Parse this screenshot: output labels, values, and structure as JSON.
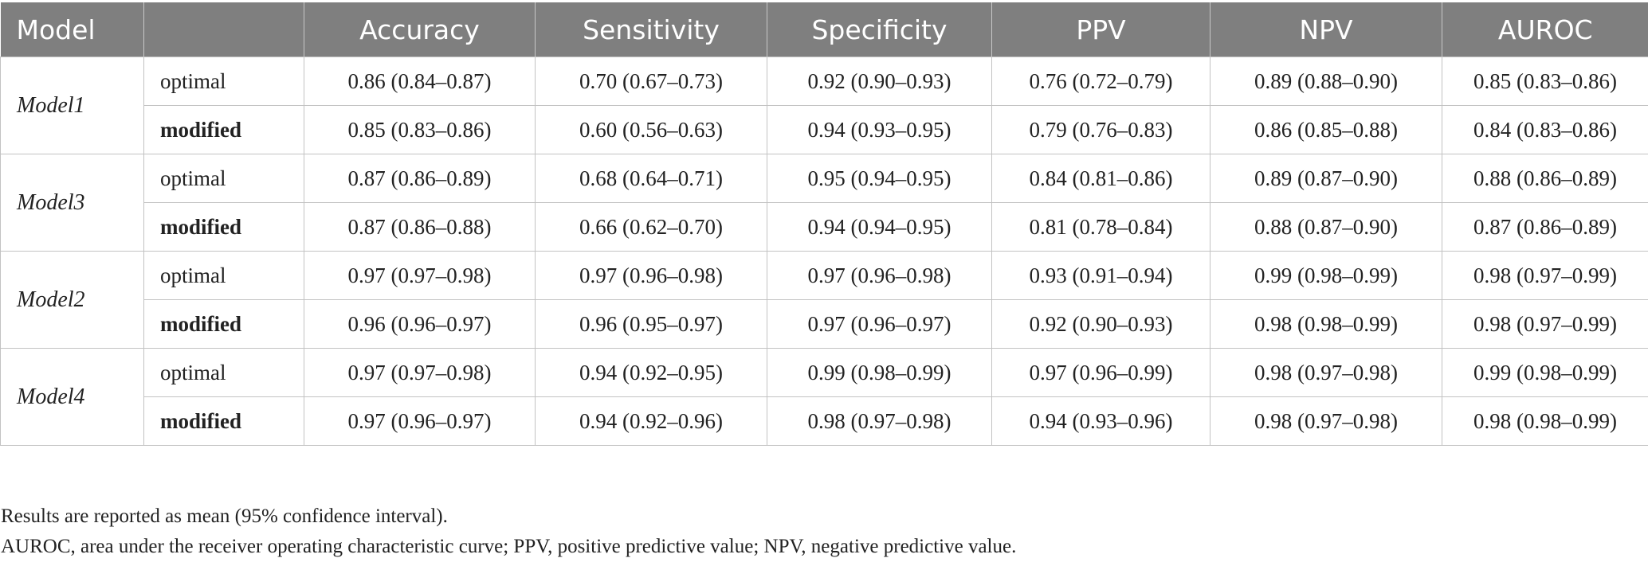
{
  "table": {
    "headers": [
      "Model",
      "",
      "Accuracy",
      "Sensitivity",
      "Specificity",
      "PPV",
      "NPV",
      "AUROC"
    ],
    "groups": [
      {
        "model": "Model1",
        "rows": [
          {
            "variant": "optimal",
            "bold": false,
            "values": [
              "0.86 (0.84–0.87)",
              "0.70 (0.67–0.73)",
              "0.92 (0.90–0.93)",
              "0.76 (0.72–0.79)",
              "0.89 (0.88–0.90)",
              "0.85 (0.83–0.86)"
            ]
          },
          {
            "variant": "modified",
            "bold": true,
            "values": [
              "0.85 (0.83–0.86)",
              "0.60 (0.56–0.63)",
              "0.94 (0.93–0.95)",
              "0.79 (0.76–0.83)",
              "0.86 (0.85–0.88)",
              "0.84 (0.83–0.86)"
            ]
          }
        ]
      },
      {
        "model": "Model3",
        "rows": [
          {
            "variant": "optimal",
            "bold": false,
            "values": [
              "0.87 (0.86–0.89)",
              "0.68 (0.64–0.71)",
              "0.95 (0.94–0.95)",
              "0.84 (0.81–0.86)",
              "0.89 (0.87–0.90)",
              "0.88 (0.86–0.89)"
            ]
          },
          {
            "variant": "modified",
            "bold": true,
            "values": [
              "0.87 (0.86–0.88)",
              "0.66 (0.62–0.70)",
              "0.94 (0.94–0.95)",
              "0.81 (0.78–0.84)",
              "0.88 (0.87–0.90)",
              "0.87 (0.86–0.89)"
            ]
          }
        ]
      },
      {
        "model": "Model2",
        "rows": [
          {
            "variant": "optimal",
            "bold": false,
            "values": [
              "0.97 (0.97–0.98)",
              "0.97 (0.96–0.98)",
              "0.97 (0.96–0.98)",
              "0.93 (0.91–0.94)",
              "0.99 (0.98–0.99)",
              "0.98 (0.97–0.99)"
            ]
          },
          {
            "variant": "modified",
            "bold": true,
            "values": [
              "0.96 (0.96–0.97)",
              "0.96 (0.95–0.97)",
              "0.97 (0.96–0.97)",
              "0.92 (0.90–0.93)",
              "0.98 (0.98–0.99)",
              "0.98 (0.97–0.99)"
            ]
          }
        ]
      },
      {
        "model": "Model4",
        "rows": [
          {
            "variant": "optimal",
            "bold": false,
            "values": [
              "0.97 (0.97–0.98)",
              "0.94 (0.92–0.95)",
              "0.99 (0.98–0.99)",
              "0.97 (0.96–0.99)",
              "0.98 (0.97–0.98)",
              "0.99 (0.98–0.99)"
            ]
          },
          {
            "variant": "modified",
            "bold": true,
            "values": [
              "0.97 (0.96–0.97)",
              "0.94 (0.92–0.96)",
              "0.98 (0.97–0.98)",
              "0.94 (0.93–0.96)",
              "0.98 (0.97–0.98)",
              "0.98 (0.98–0.99)"
            ]
          }
        ]
      }
    ]
  },
  "notes": {
    "line1": "Results are reported as mean (95% confidence interval).",
    "line2": "AUROC, area under the receiver operating characteristic curve; PPV, positive predictive value; NPV, negative predictive value."
  },
  "colors": {
    "header_bg": "#7f7f7f",
    "header_text": "#ffffff",
    "grid": "#c2c2c2"
  }
}
